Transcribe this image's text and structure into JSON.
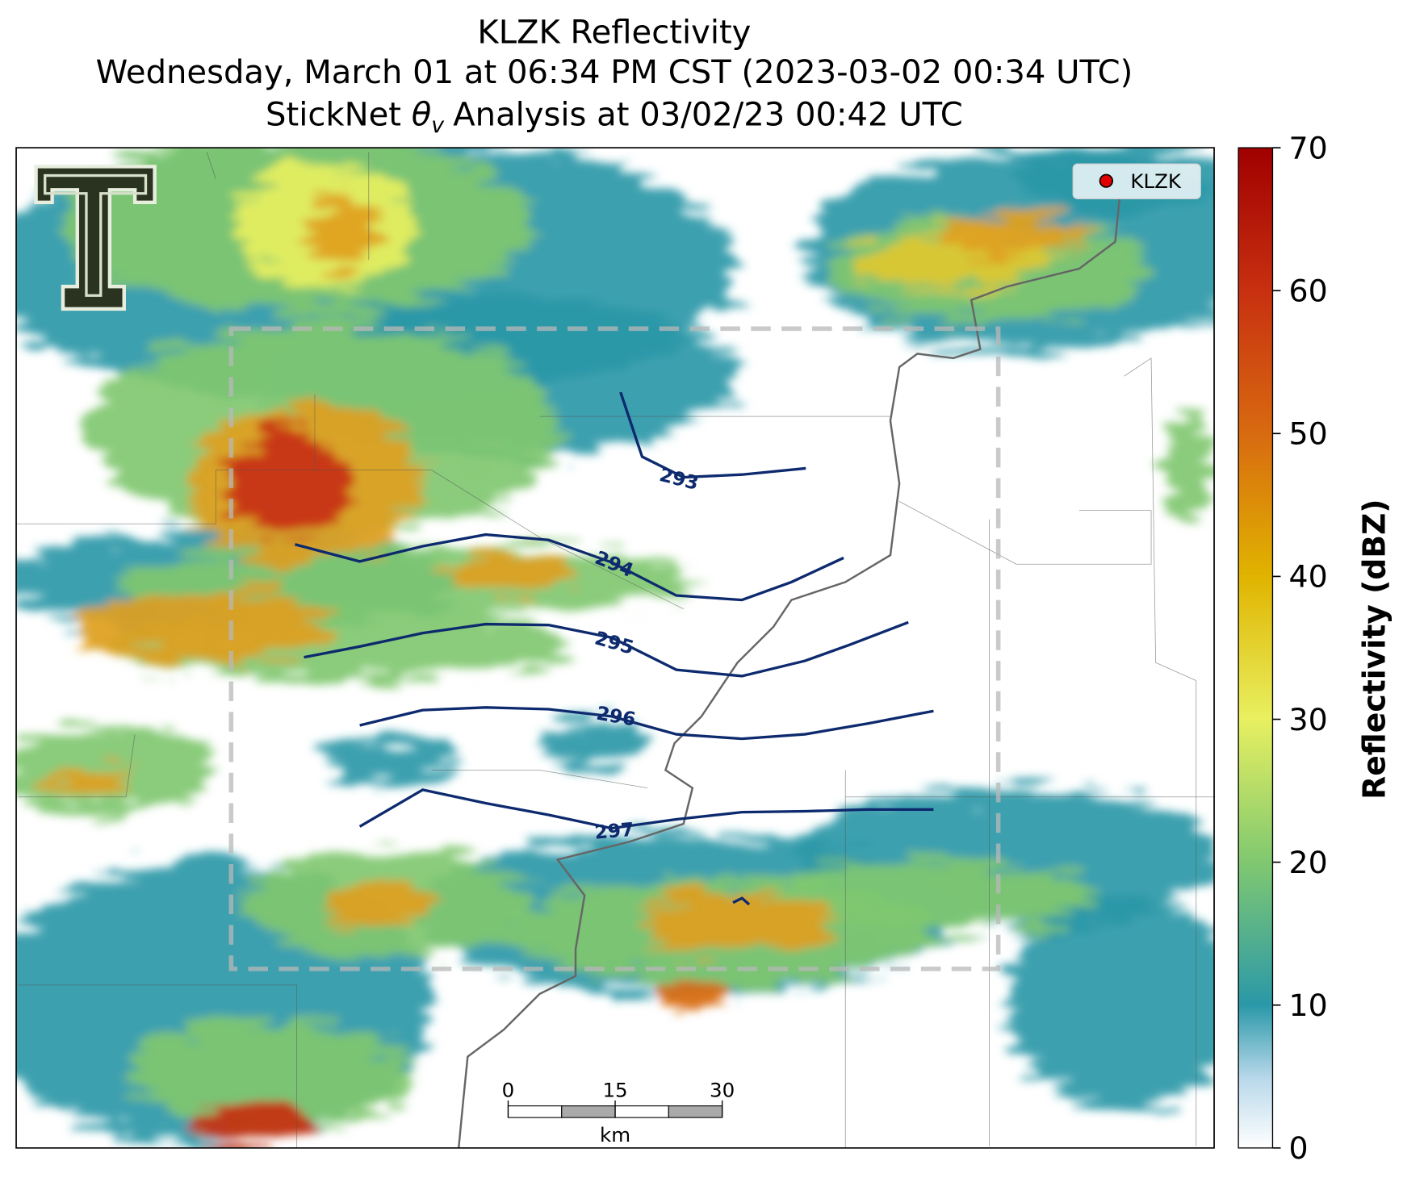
{
  "title": {
    "line1": "KLZK Reflectivity",
    "line2": "Wednesday, March 01 at 06:34 PM CST (2023-03-02 00:34 UTC)",
    "line3": {
      "before": "StickNet",
      "symbol": "θ",
      "subscript": "v",
      "after": "Analysis at 03/02/23 00:42 UTC"
    }
  },
  "legend": {
    "label": "KLZK"
  },
  "contours": [
    {
      "level": 293
    },
    {
      "level": 294
    },
    {
      "level": 295
    },
    {
      "level": 296
    },
    {
      "level": 297
    }
  ],
  "scalebar": {
    "ticks": [
      0,
      15,
      30
    ],
    "unit": "km"
  },
  "colorbar": {
    "label": "Reflectivity (dBZ)",
    "lim": [
      0,
      70
    ],
    "ticks": [
      0,
      10,
      20,
      30,
      40,
      50,
      60,
      70
    ]
  }
}
